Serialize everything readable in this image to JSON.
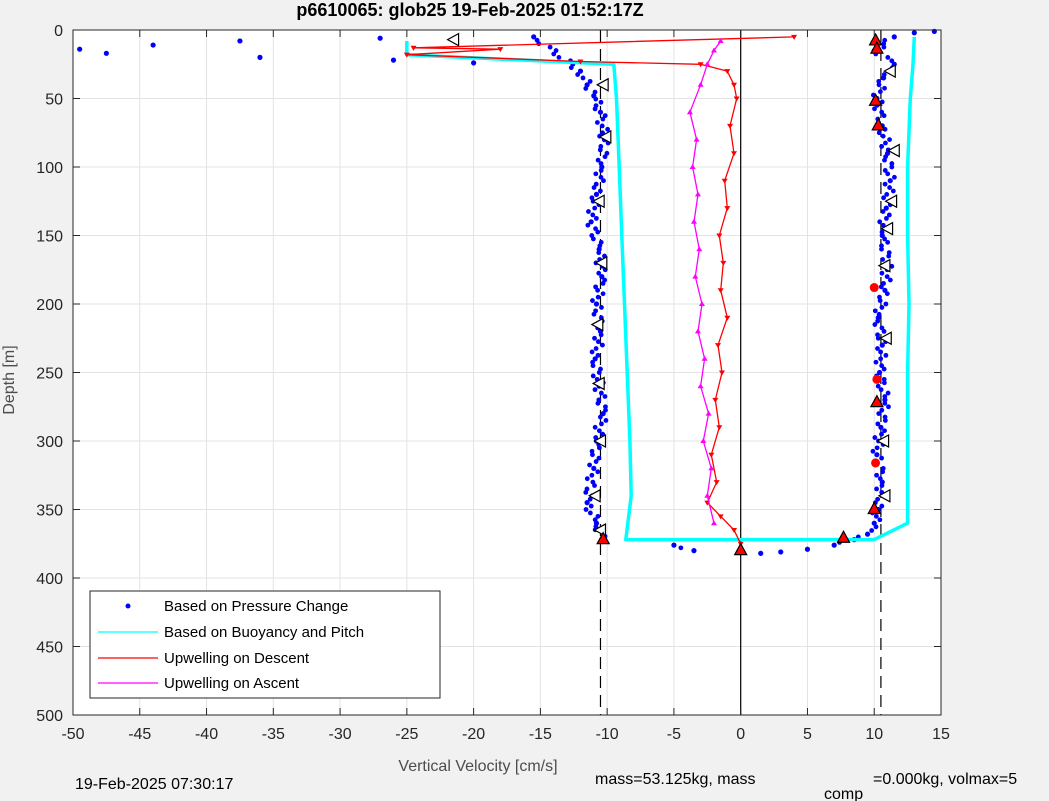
{
  "chart_data": {
    "type": "scatter",
    "title": "p6610065: glob25 19-Feb-2025 01:52:17Z",
    "xlabel": "Vertical Velocity [cm/s]",
    "ylabel": "Depth [m]",
    "xlim": [
      -50,
      15
    ],
    "ylim": [
      0,
      500
    ],
    "y_reversed": true,
    "grid": true,
    "legend_position": "bottom-left",
    "x_ticks": [
      "-50",
      "-45",
      "-40",
      "-35",
      "-30",
      "-25",
      "-20",
      "-15",
      "-10",
      "-5",
      "0",
      "5",
      "10",
      "15"
    ],
    "y_ticks": [
      "0",
      "50",
      "100",
      "150",
      "200",
      "250",
      "300",
      "350",
      "400",
      "450",
      "500"
    ],
    "reference_lines": [
      {
        "x": -10.5,
        "style": "dashed"
      },
      {
        "x": 0,
        "style": "solid"
      },
      {
        "x": 10.5,
        "style": "dashed"
      }
    ],
    "series": [
      {
        "name": "Based on Pressure Change",
        "color": "#0000ff",
        "marker": "dot",
        "segments": [
          [
            [
              -27,
              6
            ],
            [
              -37.5,
              8
            ],
            [
              -44,
              11
            ],
            [
              -49.5,
              14
            ],
            [
              -47.5,
              17
            ],
            [
              -36,
              20
            ],
            [
              -26,
              22
            ],
            [
              -20,
              24
            ],
            [
              -15.5,
              5
            ],
            [
              -12,
              30
            ],
            [
              -11.5,
              40
            ],
            [
              -11,
              48
            ],
            [
              -10.5,
              60
            ],
            [
              -10.2,
              80
            ],
            [
              -10.4,
              100
            ],
            [
              -10.8,
              120
            ],
            [
              -11.2,
              140
            ],
            [
              -10.6,
              160
            ],
            [
              -10.4,
              180
            ],
            [
              -10.8,
              200
            ],
            [
              -10.5,
              220
            ],
            [
              -10.9,
              240
            ],
            [
              -10.6,
              260
            ],
            [
              -10.3,
              280
            ],
            [
              -10.8,
              300
            ],
            [
              -11,
              320
            ],
            [
              -11.5,
              345
            ],
            [
              -10.8,
              360
            ],
            [
              -10.3,
              372
            ],
            [
              -5,
              376
            ],
            [
              -3.5,
              380
            ]
          ],
          [
            [
              1.5,
              382
            ],
            [
              3,
              381
            ],
            [
              5,
              379
            ],
            [
              7,
              376
            ],
            [
              8.5,
              372
            ],
            [
              9.5,
              368
            ],
            [
              10,
              360
            ],
            [
              10.3,
              350
            ],
            [
              10.6,
              330
            ],
            [
              10.2,
              310
            ],
            [
              10.5,
              290
            ],
            [
              10.8,
              270
            ],
            [
              10.4,
              250
            ],
            [
              10.6,
              230
            ],
            [
              10.3,
              210
            ],
            [
              10.8,
              190
            ],
            [
              11,
              170
            ],
            [
              10.6,
              150
            ],
            [
              10.9,
              130
            ],
            [
              11.2,
              110
            ],
            [
              11,
              90
            ],
            [
              10.6,
              70
            ],
            [
              10.2,
              50
            ],
            [
              10.7,
              35
            ],
            [
              11.5,
              25
            ],
            [
              10,
              15
            ],
            [
              11.5,
              5
            ],
            [
              13,
              2
            ],
            [
              14.5,
              1
            ]
          ]
        ]
      },
      {
        "name": "Based on Buoyancy and Pitch",
        "color": "#00ffff",
        "marker": "line",
        "segments": [
          [
            [
              -25,
              8
            ],
            [
              -25,
              18
            ],
            [
              -9.5,
              25
            ],
            [
              -9.3,
              50
            ],
            [
              -9.1,
              100
            ],
            [
              -8.9,
              150
            ],
            [
              -8.7,
              200
            ],
            [
              -8.5,
              250
            ],
            [
              -8.3,
              300
            ],
            [
              -8.2,
              340
            ],
            [
              -8.6,
              372
            ],
            [
              10,
              372
            ],
            [
              12.5,
              360
            ],
            [
              12.5,
              300
            ],
            [
              12.5,
              250
            ],
            [
              12.6,
              200
            ],
            [
              12.5,
              150
            ],
            [
              12.5,
              100
            ],
            [
              12.7,
              50
            ],
            [
              12.9,
              25
            ],
            [
              13,
              5
            ]
          ]
        ]
      },
      {
        "name": "Upwelling on Descent",
        "color": "#ff0000",
        "marker": "line",
        "segments": [
          [
            [
              4,
              5
            ],
            [
              -24.5,
              13
            ],
            [
              -18,
              14
            ],
            [
              -25,
              18
            ],
            [
              -12,
              23
            ],
            [
              -3,
              25
            ],
            [
              -1,
              30
            ],
            [
              -0.5,
              40
            ],
            [
              -0.3,
              50
            ],
            [
              -0.8,
              70
            ],
            [
              -0.5,
              90
            ],
            [
              -1.2,
              110
            ],
            [
              -1,
              130
            ],
            [
              -1.6,
              150
            ],
            [
              -1.3,
              170
            ],
            [
              -1.5,
              190
            ],
            [
              -1,
              210
            ],
            [
              -1.7,
              230
            ],
            [
              -1.4,
              250
            ],
            [
              -1.9,
              270
            ],
            [
              -1.6,
              290
            ],
            [
              -2.2,
              310
            ],
            [
              -1.8,
              330
            ],
            [
              -2.5,
              345
            ],
            [
              -1.5,
              355
            ],
            [
              -0.5,
              365
            ],
            [
              0,
              375
            ]
          ]
        ]
      },
      {
        "name": "Upwelling on Ascent",
        "color": "#ff00ff",
        "marker": "line",
        "segments": [
          [
            [
              -2,
              360
            ],
            [
              -2.5,
              340
            ],
            [
              -2.2,
              320
            ],
            [
              -2.8,
              300
            ],
            [
              -2.4,
              280
            ],
            [
              -3,
              260
            ],
            [
              -2.7,
              240
            ],
            [
              -3.2,
              220
            ],
            [
              -2.9,
              200
            ],
            [
              -3.4,
              180
            ],
            [
              -3.1,
              160
            ],
            [
              -3.5,
              140
            ],
            [
              -3.2,
              120
            ],
            [
              -3.6,
              100
            ],
            [
              -3.3,
              80
            ],
            [
              -3.8,
              60
            ],
            [
              -3,
              40
            ],
            [
              -2.5,
              25
            ],
            [
              -2,
              15
            ],
            [
              -1.5,
              8
            ]
          ]
        ]
      }
    ],
    "markers": [
      {
        "x": -21.5,
        "y": 7,
        "shape": "left-triangle",
        "color": "#ffffff"
      },
      {
        "x": -10.3,
        "y": 40,
        "shape": "left-triangle",
        "color": "#ffffff"
      },
      {
        "x": -10.1,
        "y": 78,
        "shape": "left-triangle",
        "color": "#ffffff"
      },
      {
        "x": -10.6,
        "y": 125,
        "shape": "left-triangle",
        "color": "#ffffff"
      },
      {
        "x": -10.4,
        "y": 170,
        "shape": "left-triangle",
        "color": "#ffffff"
      },
      {
        "x": -10.7,
        "y": 215,
        "shape": "left-triangle",
        "color": "#ffffff"
      },
      {
        "x": -10.6,
        "y": 258,
        "shape": "left-triangle",
        "color": "#ffffff"
      },
      {
        "x": -10.5,
        "y": 300,
        "shape": "left-triangle",
        "color": "#ffffff"
      },
      {
        "x": -10.9,
        "y": 340,
        "shape": "left-triangle",
        "color": "#ffffff"
      },
      {
        "x": -10.5,
        "y": 365,
        "shape": "left-triangle",
        "color": "#ffffff"
      },
      {
        "x": 11.2,
        "y": 30,
        "shape": "left-triangle",
        "color": "#ffffff"
      },
      {
        "x": 11.5,
        "y": 88,
        "shape": "left-triangle",
        "color": "#ffffff"
      },
      {
        "x": 11.3,
        "y": 125,
        "shape": "left-triangle",
        "color": "#ffffff"
      },
      {
        "x": 11,
        "y": 145,
        "shape": "left-triangle",
        "color": "#ffffff"
      },
      {
        "x": 10.8,
        "y": 172,
        "shape": "left-triangle",
        "color": "#ffffff"
      },
      {
        "x": 10.9,
        "y": 225,
        "shape": "left-triangle",
        "color": "#ffffff"
      },
      {
        "x": 10.7,
        "y": 300,
        "shape": "left-triangle",
        "color": "#ffffff"
      },
      {
        "x": 10.8,
        "y": 340,
        "shape": "left-triangle",
        "color": "#ffffff"
      },
      {
        "x": 10.1,
        "y": 8,
        "shape": "up-triangle",
        "color": "#ff0000"
      },
      {
        "x": 10.2,
        "y": 14,
        "shape": "up-triangle",
        "color": "#ff0000"
      },
      {
        "x": 10.1,
        "y": 52,
        "shape": "up-triangle",
        "color": "#ff0000"
      },
      {
        "x": 10.3,
        "y": 70,
        "shape": "up-triangle",
        "color": "#ff0000"
      },
      {
        "x": 10.2,
        "y": 272,
        "shape": "up-triangle",
        "color": "#ff0000"
      },
      {
        "x": 10,
        "y": 350,
        "shape": "up-triangle",
        "color": "#ff0000"
      },
      {
        "x": 7.7,
        "y": 371,
        "shape": "up-triangle",
        "color": "#ff0000"
      },
      {
        "x": -10.3,
        "y": 372,
        "shape": "up-triangle",
        "color": "#ff0000"
      },
      {
        "x": 0,
        "y": 380,
        "shape": "up-triangle",
        "color": "#ff0000"
      },
      {
        "x": 10,
        "y": 188,
        "shape": "circle",
        "color": "#ff0000"
      },
      {
        "x": 10.2,
        "y": 255,
        "shape": "circle",
        "color": "#ff0000"
      },
      {
        "x": 10.1,
        "y": 316,
        "shape": "circle",
        "color": "#ff0000"
      }
    ]
  },
  "footer": {
    "timestamp": "19-Feb-2025 07:30:17",
    "mass_text": "mass=53.125kg, mass",
    "comp_subscript": "comp",
    "comp_text": "=0.000kg, volmax=5"
  }
}
